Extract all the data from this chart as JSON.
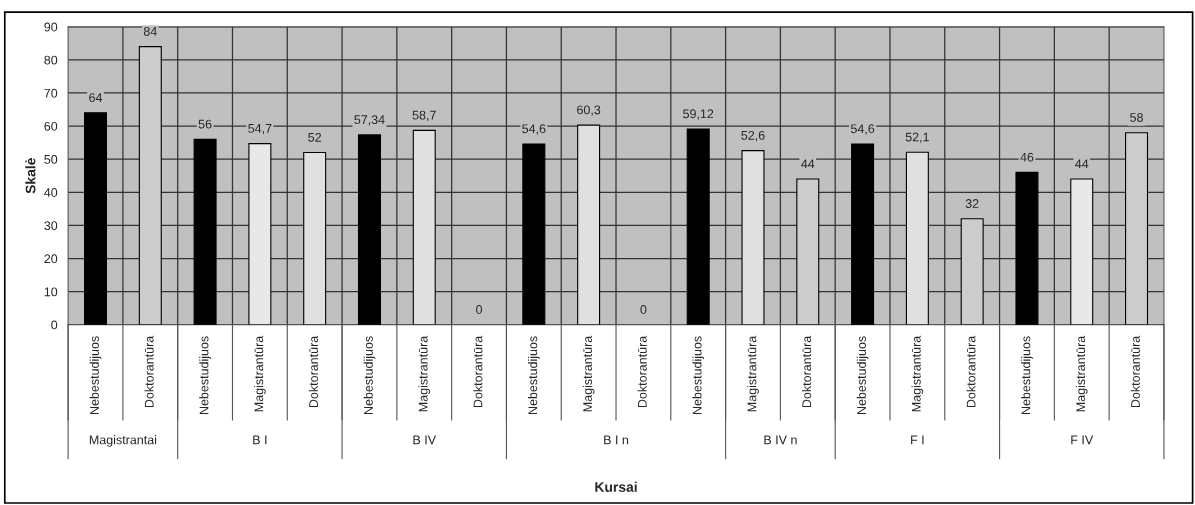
{
  "chart_data": {
    "type": "bar",
    "xlabel": "Kursai",
    "ylabel": "Skalė",
    "categories": [
      "Nebestudijuos",
      "Doktorantūra",
      "Nebestudijuos",
      "Magistrantūra",
      "Doktorantūra",
      "Nebestudijuos",
      "Magistrantūra",
      "Doktorantūra",
      "Nebestudijuos",
      "Magistrantūra",
      "Doktorantūra",
      "Nebestudijuos",
      "Magistrantūra",
      "Doktorantūra",
      "Nebestudijuos",
      "Magistrantūra",
      "Doktorantūra",
      "Nebestudijuos",
      "Magistrantūra",
      "Doktorantūra"
    ],
    "values": [
      64,
      84,
      56,
      54.7,
      52,
      57.34,
      58.7,
      0,
      54.6,
      60.3,
      0,
      59.12,
      52.6,
      44,
      54.6,
      52.1,
      32,
      46,
      44,
      58
    ],
    "value_labels": [
      "64",
      "84",
      "56",
      "54,7",
      "52",
      "57,34",
      "58,7",
      "0",
      "54,6",
      "60,3",
      "0",
      "59,12",
      "52,6",
      "44",
      "54,6",
      "52,1",
      "32",
      "46",
      "44",
      "58"
    ],
    "colors": [
      "#000000",
      "#cccccc",
      "#000000",
      "#e8e8e8",
      "#e0e0e0",
      "#000000",
      "#e0e0e0",
      "#cccccc",
      "#000000",
      "#e0e0e0",
      "#cccccc",
      "#000000",
      "#e0e0e0",
      "#cccccc",
      "#000000",
      "#e0e0e0",
      "#cccccc",
      "#000000",
      "#e8e8e8",
      "#cccccc"
    ],
    "annotations": [
      "Magistrantai",
      "B I",
      "B IV",
      "B I n",
      "B IV n",
      "F I",
      "F IV"
    ],
    "ylim": [
      0,
      90
    ],
    "yticks": [
      0,
      10,
      20,
      30,
      40,
      50,
      60,
      70,
      80,
      90
    ],
    "grid": true,
    "legend": false
  }
}
